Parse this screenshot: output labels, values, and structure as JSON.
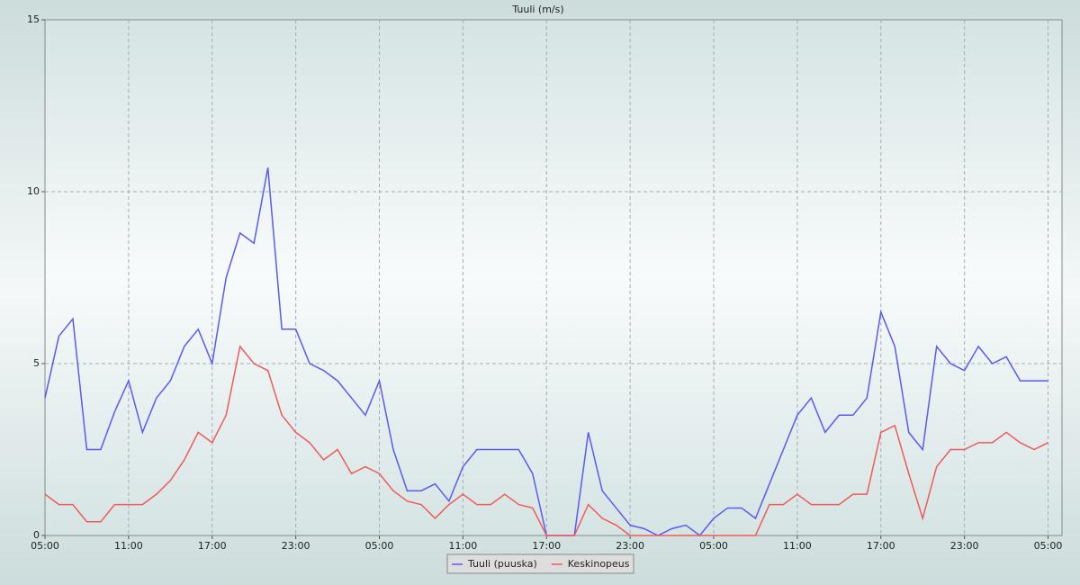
{
  "chart_data": {
    "type": "line",
    "title": "Tuuli (m/s)",
    "x": [
      0,
      1,
      2,
      3,
      4,
      5,
      6,
      7,
      8,
      9,
      10,
      11,
      12,
      13,
      14,
      15,
      16,
      17,
      18,
      19,
      20,
      21,
      22,
      23,
      24,
      25,
      26,
      27,
      28,
      29,
      30,
      31,
      32,
      33,
      34,
      35,
      36,
      37,
      38,
      39,
      40,
      41,
      42,
      43,
      44,
      45,
      46,
      47,
      48,
      49,
      50,
      51,
      52,
      53,
      54,
      55,
      56,
      57,
      58,
      59,
      60,
      61,
      62,
      63,
      64,
      65,
      66,
      67,
      68,
      69,
      70,
      71,
      72
    ],
    "series": [
      {
        "name": "Tuuli (puuska)",
        "color": "#5a5af0",
        "values": [
          4,
          5.8,
          6.3,
          2.5,
          2.5,
          3.6,
          4.5,
          3,
          4,
          4.5,
          5.5,
          6,
          5,
          7.5,
          8.8,
          8.5,
          10.7,
          6,
          6,
          5,
          4.8,
          4.5,
          4,
          3.5,
          4.5,
          2.5,
          1.3,
          1.3,
          1.5,
          1,
          2,
          2.5,
          2.5,
          2.5,
          2.5,
          1.8,
          0,
          0,
          0,
          3,
          1.3,
          0.8,
          0.3,
          0.2,
          0,
          0.2,
          0.3,
          0,
          0.5,
          0.8,
          0.8,
          0.5,
          1.5,
          2.5,
          3.5,
          4,
          3,
          3.5,
          3.5,
          4,
          6.5,
          5.5,
          3,
          2.5,
          5.5,
          5,
          4.8,
          5.5,
          5,
          5.2,
          4.5,
          4.5,
          4.5
        ]
      },
      {
        "name": "Keskinopeus",
        "color": "#f05a5a",
        "values": [
          1.2,
          0.9,
          0.9,
          0.4,
          0.4,
          0.9,
          0.9,
          0.9,
          1.2,
          1.6,
          2.2,
          3,
          2.7,
          3.5,
          5.5,
          5,
          4.8,
          3.5,
          3,
          2.7,
          2.2,
          2.5,
          1.8,
          2,
          1.8,
          1.3,
          1,
          0.9,
          0.5,
          0.9,
          1.2,
          0.9,
          0.9,
          1.2,
          0.9,
          0.8,
          0,
          0,
          0,
          0.9,
          0.5,
          0.3,
          0,
          0,
          0,
          0,
          0,
          0,
          0,
          0,
          0,
          0,
          0.9,
          0.9,
          1.2,
          0.9,
          0.9,
          0.9,
          1.2,
          1.2,
          3,
          3.2,
          1.8,
          0.5,
          2,
          2.5,
          2.5,
          2.7,
          2.7,
          3,
          2.7,
          2.5,
          2.7
        ]
      }
    ],
    "xlim": [
      0,
      73
    ],
    "xticks": [
      {
        "value": 0,
        "label": "05:00"
      },
      {
        "value": 6,
        "label": "11:00"
      },
      {
        "value": 12,
        "label": "17:00"
      },
      {
        "value": 18,
        "label": "23:00"
      },
      {
        "value": 24,
        "label": "05:00"
      },
      {
        "value": 30,
        "label": "11:00"
      },
      {
        "value": 36,
        "label": "17:00"
      },
      {
        "value": 42,
        "label": "23:00"
      },
      {
        "value": 48,
        "label": "05:00"
      },
      {
        "value": 54,
        "label": "11:00"
      },
      {
        "value": 60,
        "label": "17:00"
      },
      {
        "value": 66,
        "label": "23:00"
      },
      {
        "value": 72,
        "label": "05:00"
      }
    ],
    "ylim": [
      0,
      15
    ],
    "yticks": [
      0,
      5,
      10,
      15
    ],
    "grid": true,
    "legend": "bottom"
  }
}
